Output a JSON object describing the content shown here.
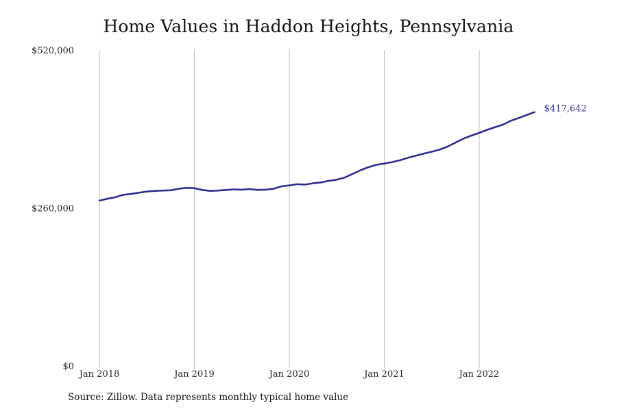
{
  "title": "Home Values in Haddon Heights, Pennsylvania",
  "source": "Source: Zillow. Data represents monthly typical home value",
  "line_color": "#2e2e8a",
  "grid_color": "#bbbbbb",
  "chart_data": {
    "type": "line",
    "title": "Home Values in Haddon Heights, Pennsylvania",
    "xlabel": "",
    "ylabel": "",
    "ylim": [
      0,
      520000
    ],
    "yticks": [
      0,
      260000,
      520000
    ],
    "ytick_labels": [
      "$0",
      "$260,000",
      "$520,000"
    ],
    "xticks": [
      "2018-01",
      "2019-01",
      "2020-01",
      "2021-01",
      "2022-01"
    ],
    "xtick_labels": [
      "Jan 2018",
      "Jan 2019",
      "Jan 2020",
      "Jan 2021",
      "Jan 2022"
    ],
    "grid": "vertical",
    "end_label": "$417,642",
    "series": [
      {
        "x": [
          "2018-01",
          "2018-02",
          "2018-03",
          "2018-04",
          "2018-05",
          "2018-06",
          "2018-07",
          "2018-08",
          "2018-09",
          "2018-10",
          "2018-11",
          "2018-12",
          "2019-01",
          "2019-02",
          "2019-03",
          "2019-04",
          "2019-05",
          "2019-06",
          "2019-07",
          "2019-08",
          "2019-09",
          "2019-10",
          "2019-11",
          "2019-12",
          "2020-01",
          "2020-02",
          "2020-03",
          "2020-04",
          "2020-05",
          "2020-06",
          "2020-07",
          "2020-08",
          "2020-09",
          "2020-10",
          "2020-11",
          "2020-12",
          "2021-01",
          "2021-02",
          "2021-03",
          "2021-04",
          "2021-05",
          "2021-06",
          "2021-07",
          "2021-08",
          "2021-09",
          "2021-10",
          "2021-11",
          "2021-12",
          "2022-01",
          "2022-02",
          "2022-03",
          "2022-04",
          "2022-05",
          "2022-06",
          "2022-07",
          "2022-08"
        ],
        "values": [
          272000,
          275000,
          277500,
          281500,
          283000,
          285000,
          287000,
          288000,
          288500,
          289000,
          291500,
          293000,
          292500,
          289500,
          288000,
          288500,
          289500,
          290500,
          290000,
          291000,
          289500,
          290000,
          291500,
          295500,
          297000,
          299000,
          298500,
          300500,
          302000,
          304500,
          306500,
          310000,
          316000,
          322000,
          327000,
          331000,
          333000,
          335500,
          338500,
          342500,
          346000,
          349500,
          352500,
          356000,
          361000,
          367500,
          374000,
          379000,
          383500,
          388500,
          393000,
          397000,
          403500,
          408000,
          413000,
          417642
        ]
      }
    ]
  }
}
